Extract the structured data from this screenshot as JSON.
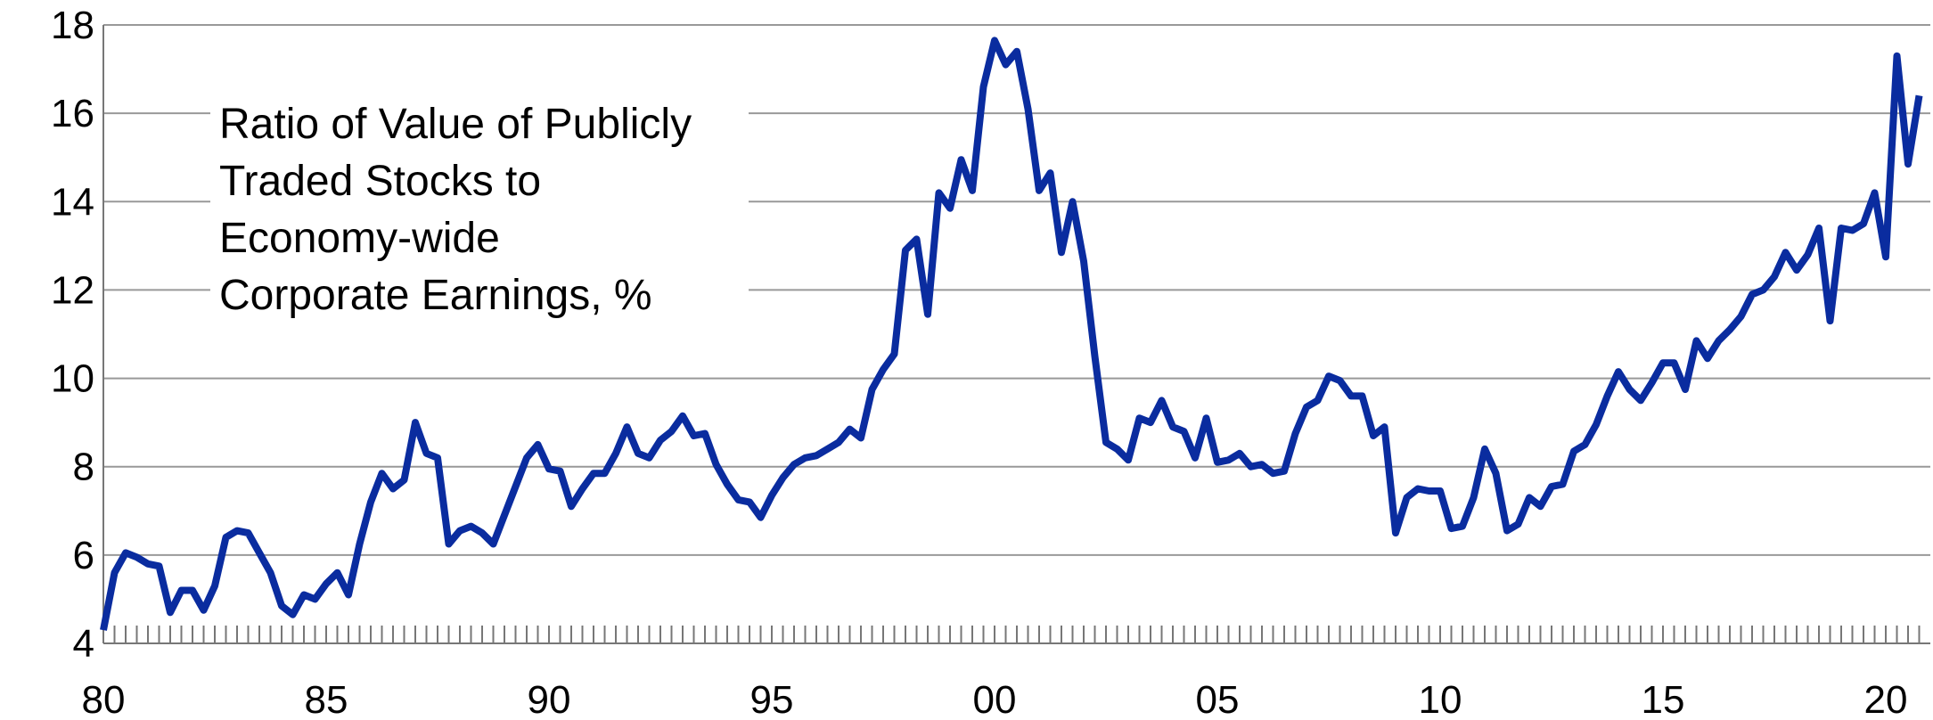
{
  "chart_data": {
    "type": "line",
    "annotation": [
      "Ratio of Value of Publicly",
      "Traded Stocks to",
      "Economy-wide",
      "Corporate Earnings, %"
    ],
    "x": [
      1980,
      1980.25,
      1980.5,
      1980.75,
      1981,
      1981.25,
      1981.5,
      1981.75,
      1982,
      1982.25,
      1982.5,
      1982.75,
      1983,
      1983.25,
      1983.5,
      1983.75,
      1984,
      1984.25,
      1984.5,
      1984.75,
      1985,
      1985.25,
      1985.5,
      1985.75,
      1986,
      1986.25,
      1986.5,
      1986.75,
      1987,
      1987.25,
      1987.5,
      1987.75,
      1988,
      1988.25,
      1988.5,
      1988.75,
      1989,
      1989.25,
      1989.5,
      1989.75,
      1990,
      1990.25,
      1990.5,
      1990.75,
      1991,
      1991.25,
      1991.5,
      1991.75,
      1992,
      1992.25,
      1992.5,
      1992.75,
      1993,
      1993.25,
      1993.5,
      1993.75,
      1994,
      1994.25,
      1994.5,
      1994.75,
      1995,
      1995.25,
      1995.5,
      1995.75,
      1996,
      1996.25,
      1996.5,
      1996.75,
      1997,
      1997.25,
      1997.5,
      1997.75,
      1998,
      1998.25,
      1998.5,
      1998.75,
      1999,
      1999.25,
      1999.5,
      1999.75,
      2000,
      2000.25,
      2000.5,
      2000.75,
      2001,
      2001.25,
      2001.5,
      2001.75,
      2002,
      2002.25,
      2002.5,
      2002.75,
      2003,
      2003.25,
      2003.5,
      2003.75,
      2004,
      2004.25,
      2004.5,
      2004.75,
      2005,
      2005.25,
      2005.5,
      2005.75,
      2006,
      2006.25,
      2006.5,
      2006.75,
      2007,
      2007.25,
      2007.5,
      2007.75,
      2008,
      2008.25,
      2008.5,
      2008.75,
      2009,
      2009.25,
      2009.5,
      2009.75,
      2010,
      2010.25,
      2010.5,
      2010.75,
      2011,
      2011.25,
      2011.5,
      2011.75,
      2012,
      2012.25,
      2012.5,
      2012.75,
      2013,
      2013.25,
      2013.5,
      2013.75,
      2014,
      2014.25,
      2014.5,
      2014.75,
      2015,
      2015.25,
      2015.5,
      2015.75,
      2016,
      2016.25,
      2016.5,
      2016.75,
      2017,
      2017.25,
      2017.5,
      2017.75,
      2018,
      2018.25,
      2018.5,
      2018.75,
      2019,
      2019.25,
      2019.5,
      2019.75,
      2020,
      2020.25,
      2020.5,
      2020.75
    ],
    "series": [
      {
        "color": "#0a2c9f",
        "values": [
          4.3,
          5.6,
          6.05,
          5.95,
          5.8,
          5.75,
          4.7,
          5.2,
          5.2,
          4.75,
          5.3,
          6.4,
          6.55,
          6.5,
          6.05,
          5.6,
          4.85,
          4.65,
          5.1,
          5.0,
          5.35,
          5.6,
          5.1,
          6.25,
          7.2,
          7.85,
          7.5,
          7.7,
          9.0,
          8.3,
          8.2,
          6.25,
          6.55,
          6.65,
          6.5,
          6.25,
          6.9,
          7.55,
          8.2,
          8.5,
          7.95,
          7.9,
          7.1,
          7.5,
          7.85,
          7.85,
          8.3,
          8.9,
          8.3,
          8.2,
          8.6,
          8.8,
          9.15,
          8.7,
          8.75,
          8.05,
          7.6,
          7.25,
          7.2,
          6.85,
          7.35,
          7.75,
          8.05,
          8.2,
          8.25,
          8.4,
          8.55,
          8.85,
          8.65,
          9.75,
          10.2,
          10.55,
          12.9,
          13.15,
          11.45,
          14.2,
          13.85,
          14.95,
          14.25,
          16.6,
          17.65,
          17.1,
          17.4,
          16.1,
          14.25,
          14.65,
          12.85,
          14.0,
          12.65,
          10.5,
          8.55,
          8.4,
          8.15,
          9.1,
          9.0,
          9.5,
          8.9,
          8.8,
          8.2,
          9.1,
          8.1,
          8.15,
          8.3,
          8.0,
          8.05,
          7.85,
          7.9,
          8.75,
          9.35,
          9.5,
          10.05,
          9.95,
          9.6,
          9.6,
          8.7,
          8.9,
          6.5,
          7.3,
          7.5,
          7.45,
          7.45,
          6.6,
          6.65,
          7.3,
          8.4,
          7.85,
          6.55,
          6.7,
          7.3,
          7.1,
          7.55,
          7.6,
          8.35,
          8.5,
          8.95,
          9.6,
          10.15,
          9.75,
          9.5,
          9.9,
          10.35,
          10.35,
          9.75,
          10.85,
          10.45,
          10.85,
          11.1,
          11.4,
          11.9,
          12.0,
          12.3,
          12.85,
          12.45,
          12.8,
          13.4,
          11.3,
          13.4,
          13.35,
          13.5,
          14.2,
          12.75,
          17.3,
          14.85,
          16.4
        ]
      }
    ],
    "xlim": [
      1980,
      2021
    ],
    "xticks": [
      {
        "value": 1980,
        "label": "80"
      },
      {
        "value": 1985,
        "label": "85"
      },
      {
        "value": 1990,
        "label": "90"
      },
      {
        "value": 1995,
        "label": "95"
      },
      {
        "value": 2000,
        "label": "00"
      },
      {
        "value": 2005,
        "label": "05"
      },
      {
        "value": 2010,
        "label": "10"
      },
      {
        "value": 2015,
        "label": "15"
      },
      {
        "value": 2020,
        "label": "20"
      }
    ],
    "ylim": [
      4,
      18
    ],
    "yticks": [
      4,
      6,
      8,
      10,
      12,
      14,
      16,
      18
    ],
    "grid": true
  }
}
